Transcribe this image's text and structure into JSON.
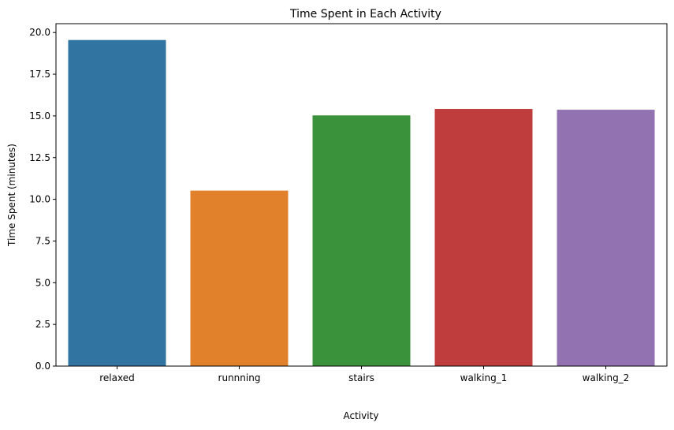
{
  "chart_data": {
    "type": "bar",
    "title": "Time Spent in Each Activity",
    "xlabel": "Activity",
    "ylabel": "Time Spent (minutes)",
    "categories": [
      "relaxed",
      "runnning",
      "stairs",
      "walking_1",
      "walking_2"
    ],
    "values": [
      19.55,
      10.52,
      15.03,
      15.42,
      15.37
    ],
    "colors": [
      "#3274a1",
      "#e1812c",
      "#3a923a",
      "#c03d3e",
      "#9372b2"
    ],
    "ylim": [
      0,
      20.53
    ],
    "yticks": [
      0.0,
      2.5,
      5.0,
      7.5,
      10.0,
      12.5,
      15.0,
      17.5,
      20.0
    ],
    "ytick_labels": [
      "0.0",
      "2.5",
      "5.0",
      "7.5",
      "10.0",
      "12.5",
      "15.0",
      "17.5",
      "20.0"
    ],
    "grid": false,
    "legend": "none"
  }
}
